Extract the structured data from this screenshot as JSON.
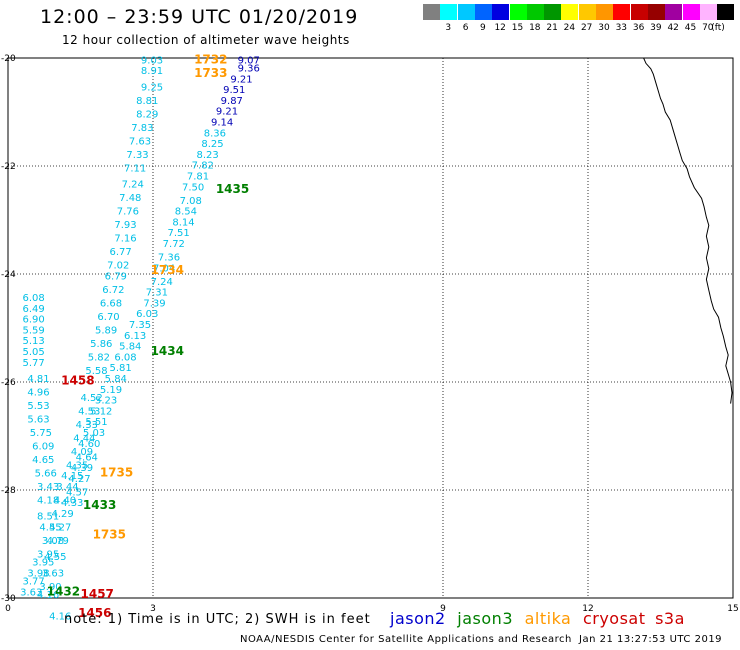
{
  "title": "12:00 – 23:59 UTC 01/20/2019",
  "subtitle": "12 hour collection of altimeter wave heights",
  "legend": {
    "unit": "(ft)",
    "bins": [
      {
        "label": "",
        "color": "#808080"
      },
      {
        "label": "3",
        "color": "#00ffff"
      },
      {
        "label": "6",
        "color": "#00c8ff"
      },
      {
        "label": "9",
        "color": "#0064ff"
      },
      {
        "label": "12",
        "color": "#0000e0"
      },
      {
        "label": "15",
        "color": "#00ff00"
      },
      {
        "label": "18",
        "color": "#00c800"
      },
      {
        "label": "21",
        "color": "#009600"
      },
      {
        "label": "24",
        "color": "#ffff00"
      },
      {
        "label": "27",
        "color": "#ffc800"
      },
      {
        "label": "30",
        "color": "#ff9600"
      },
      {
        "label": "33",
        "color": "#ff0000"
      },
      {
        "label": "36",
        "color": "#c80000"
      },
      {
        "label": "39",
        "color": "#960000"
      },
      {
        "label": "42",
        "color": "#a000a0"
      },
      {
        "label": "45",
        "color": "#ff00ff"
      },
      {
        "label": "70",
        "color": "#ffb4ff"
      },
      {
        "label": "",
        "color": "#000000"
      }
    ]
  },
  "axes": {
    "x_ticks": [
      "0",
      "3",
      "9",
      "12",
      "15"
    ],
    "y_ticks": [
      "-20",
      "-22",
      "-24",
      "-26",
      "-28",
      "-30"
    ]
  },
  "colors": {
    "jason2": "#0000cc",
    "jason3": "#007f00",
    "altika": "#ff9900",
    "cryosat": "#cc0000",
    "s3a": "#cc0000",
    "wave_cyan": "#00bfe6",
    "wave_blue": "#0000b4"
  },
  "observations": {
    "track_west": [
      {
        "lon": 0.3,
        "lat": -24.5,
        "v": "6.08"
      },
      {
        "lon": 0.3,
        "lat": -24.7,
        "v": "6.49"
      },
      {
        "lon": 0.3,
        "lat": -24.9,
        "v": "6.90"
      },
      {
        "lon": 0.3,
        "lat": -25.1,
        "v": "5.59"
      },
      {
        "lon": 0.3,
        "lat": -25.3,
        "v": "5.13"
      },
      {
        "lon": 0.3,
        "lat": -25.5,
        "v": "5.05"
      },
      {
        "lon": 0.3,
        "lat": -25.7,
        "v": "5.77"
      },
      {
        "lon": 0.4,
        "lat": -26.0,
        "v": "4.81"
      },
      {
        "lon": 0.4,
        "lat": -26.25,
        "v": "4.96"
      },
      {
        "lon": 0.4,
        "lat": -26.5,
        "v": "5.53"
      },
      {
        "lon": 0.4,
        "lat": -26.75,
        "v": "5.63"
      },
      {
        "lon": 0.45,
        "lat": -27.0,
        "v": "5.75"
      },
      {
        "lon": 0.5,
        "lat": -27.25,
        "v": "6.09"
      },
      {
        "lon": 0.5,
        "lat": -27.5,
        "v": "4.65"
      },
      {
        "lon": 0.55,
        "lat": -27.75,
        "v": "5.66"
      },
      {
        "lon": 0.6,
        "lat": -28.0,
        "v": "3.43"
      },
      {
        "lon": 0.6,
        "lat": -28.25,
        "v": "4.18"
      },
      {
        "lon": 0.6,
        "lat": -28.55,
        "v": "8.51"
      },
      {
        "lon": 0.65,
        "lat": -28.75,
        "v": "4.55"
      },
      {
        "lon": 0.7,
        "lat": -29.0,
        "v": "3.08"
      },
      {
        "lon": 0.6,
        "lat": -29.25,
        "v": "3.95"
      },
      {
        "lon": 0.5,
        "lat": -29.4,
        "v": "3.95"
      },
      {
        "lon": 0.4,
        "lat": -29.6,
        "v": "3.98"
      },
      {
        "lon": 0.3,
        "lat": -29.75,
        "v": "3.77"
      },
      {
        "lon": 0.25,
        "lat": -29.95,
        "v": "3.63"
      }
    ],
    "track_central": [
      {
        "lon": 2.75,
        "lat": -20.1,
        "v": "9.03"
      },
      {
        "lon": 2.75,
        "lat": -20.3,
        "v": "8.91"
      },
      {
        "lon": 2.75,
        "lat": -20.6,
        "v": "9.25"
      },
      {
        "lon": 2.65,
        "lat": -20.85,
        "v": "8.81"
      },
      {
        "lon": 2.65,
        "lat": -21.1,
        "v": "8.29"
      },
      {
        "lon": 2.55,
        "lat": -21.35,
        "v": "7.83"
      },
      {
        "lon": 2.5,
        "lat": -21.6,
        "v": "7.63"
      },
      {
        "lon": 2.45,
        "lat": -21.85,
        "v": "7.33"
      },
      {
        "lon": 2.4,
        "lat": -22.1,
        "v": "7.11"
      },
      {
        "lon": 2.35,
        "lat": -22.4,
        "v": "7.24"
      },
      {
        "lon": 2.3,
        "lat": -22.65,
        "v": "7.48"
      },
      {
        "lon": 2.25,
        "lat": -22.9,
        "v": "7.76"
      },
      {
        "lon": 2.2,
        "lat": -23.15,
        "v": "7.93"
      },
      {
        "lon": 2.2,
        "lat": -23.4,
        "v": "7.16"
      },
      {
        "lon": 2.1,
        "lat": -23.65,
        "v": "6.77"
      },
      {
        "lon": 2.05,
        "lat": -23.9,
        "v": "7.02"
      },
      {
        "lon": 2.0,
        "lat": -24.1,
        "v": "6.79"
      },
      {
        "lon": 1.95,
        "lat": -24.35,
        "v": "6.72"
      },
      {
        "lon": 1.9,
        "lat": -24.6,
        "v": "6.68"
      },
      {
        "lon": 1.85,
        "lat": -24.85,
        "v": "6.70"
      },
      {
        "lon": 1.8,
        "lat": -25.1,
        "v": "5.89"
      },
      {
        "lon": 1.7,
        "lat": -25.35,
        "v": "5.86"
      },
      {
        "lon": 1.65,
        "lat": -25.6,
        "v": "5.82"
      },
      {
        "lon": 1.6,
        "lat": -25.85,
        "v": "5.58"
      },
      {
        "lon": 1.5,
        "lat": -26.35,
        "v": "4.52"
      },
      {
        "lon": 1.45,
        "lat": -26.6,
        "v": "4.53"
      },
      {
        "lon": 1.4,
        "lat": -26.85,
        "v": "4.33"
      },
      {
        "lon": 1.35,
        "lat": -27.1,
        "v": "4.44"
      },
      {
        "lon": 1.3,
        "lat": -27.35,
        "v": "4.09"
      },
      {
        "lon": 1.2,
        "lat": -27.6,
        "v": "4.35"
      },
      {
        "lon": 1.1,
        "lat": -27.8,
        "v": "4.15"
      },
      {
        "lon": 1.0,
        "lat": -28.0,
        "v": "3.44"
      },
      {
        "lon": 0.95,
        "lat": -28.25,
        "v": "4.40"
      },
      {
        "lon": 0.9,
        "lat": -28.5,
        "v": "4.29"
      },
      {
        "lon": 0.85,
        "lat": -28.75,
        "v": "4.27"
      },
      {
        "lon": 0.8,
        "lat": -29.0,
        "v": "4.79"
      },
      {
        "lon": 0.75,
        "lat": -29.3,
        "v": "4.55"
      },
      {
        "lon": 0.7,
        "lat": -29.6,
        "v": "3.63"
      },
      {
        "lon": 0.65,
        "lat": -29.85,
        "v": "3.90"
      },
      {
        "lon": 0.6,
        "lat": -30.0,
        "v": "4.16"
      },
      {
        "lon": 0.85,
        "lat": -30.4,
        "v": "4.16"
      }
    ],
    "track_east_blue": [
      {
        "lon": 4.75,
        "lat": -20.1,
        "v": "9.07"
      },
      {
        "lon": 4.75,
        "lat": -20.25,
        "v": "9.36"
      },
      {
        "lon": 4.6,
        "lat": -20.45,
        "v": "9.21"
      },
      {
        "lon": 4.45,
        "lat": -20.65,
        "v": "9.51"
      },
      {
        "lon": 4.4,
        "lat": -20.85,
        "v": "9.87"
      },
      {
        "lon": 4.3,
        "lat": -21.05,
        "v": "9.21"
      },
      {
        "lon": 4.2,
        "lat": -21.25,
        "v": "9.14"
      }
    ],
    "track_east_cyan": [
      {
        "lon": 4.05,
        "lat": -21.45,
        "v": "8.36"
      },
      {
        "lon": 4.0,
        "lat": -21.65,
        "v": "8.25"
      },
      {
        "lon": 3.9,
        "lat": -21.85,
        "v": "8.23"
      },
      {
        "lon": 3.8,
        "lat": -22.05,
        "v": "7.82"
      },
      {
        "lon": 3.7,
        "lat": -22.25,
        "v": "7.81"
      },
      {
        "lon": 3.6,
        "lat": -22.45,
        "v": "7.50"
      },
      {
        "lon": 3.55,
        "lat": -22.7,
        "v": "7.08"
      },
      {
        "lon": 3.45,
        "lat": -22.9,
        "v": "8.54"
      },
      {
        "lon": 3.4,
        "lat": -23.1,
        "v": "8.14"
      },
      {
        "lon": 3.3,
        "lat": -23.3,
        "v": "7.51"
      },
      {
        "lon": 3.2,
        "lat": -23.5,
        "v": "7.72"
      },
      {
        "lon": 3.1,
        "lat": -23.75,
        "v": "7.36"
      },
      {
        "lon": 3.0,
        "lat": -23.95,
        "v": "7.04"
      },
      {
        "lon": 2.95,
        "lat": -24.2,
        "v": "7.24"
      },
      {
        "lon": 2.85,
        "lat": -24.4,
        "v": "7.31"
      },
      {
        "lon": 2.8,
        "lat": -24.6,
        "v": "7.39"
      },
      {
        "lon": 2.65,
        "lat": -24.8,
        "v": "6.03"
      },
      {
        "lon": 2.5,
        "lat": -25.0,
        "v": "7.35"
      },
      {
        "lon": 2.4,
        "lat": -25.2,
        "v": "6.13"
      },
      {
        "lon": 2.3,
        "lat": -25.4,
        "v": "5.84"
      },
      {
        "lon": 2.2,
        "lat": -25.6,
        "v": "6.08"
      },
      {
        "lon": 2.1,
        "lat": -25.8,
        "v": "5.81"
      },
      {
        "lon": 2.0,
        "lat": -26.0,
        "v": "5.84"
      },
      {
        "lon": 1.9,
        "lat": -26.2,
        "v": "5.19"
      },
      {
        "lon": 1.8,
        "lat": -26.4,
        "v": "5.23"
      },
      {
        "lon": 1.7,
        "lat": -26.6,
        "v": "5.12"
      },
      {
        "lon": 1.6,
        "lat": -26.8,
        "v": "5.51"
      },
      {
        "lon": 1.55,
        "lat": -27.0,
        "v": "5.03"
      },
      {
        "lon": 1.45,
        "lat": -27.2,
        "v": "4.60"
      },
      {
        "lon": 1.4,
        "lat": -27.45,
        "v": "4.64"
      },
      {
        "lon": 1.3,
        "lat": -27.65,
        "v": "4.39"
      },
      {
        "lon": 1.25,
        "lat": -27.85,
        "v": "4.27"
      },
      {
        "lon": 1.2,
        "lat": -28.1,
        "v": "4.57"
      },
      {
        "lon": 1.1,
        "lat": -28.3,
        "v": "4.33"
      }
    ],
    "pass_times": [
      {
        "lon": 3.85,
        "lat": -20.1,
        "t": "1732",
        "sat": "altika"
      },
      {
        "lon": 3.85,
        "lat": -20.35,
        "t": "1733",
        "sat": "altika"
      },
      {
        "lon": 4.3,
        "lat": -22.5,
        "t": "1435",
        "sat": "jason3"
      },
      {
        "lon": 2.95,
        "lat": -24.0,
        "t": "1734",
        "sat": "altika"
      },
      {
        "lon": 2.95,
        "lat": -25.5,
        "t": "1434",
        "sat": "jason3"
      },
      {
        "lon": 1.1,
        "lat": -26.05,
        "t": "1458",
        "sat": "cryosat"
      },
      {
        "lon": 1.9,
        "lat": -27.75,
        "t": "1735",
        "sat": "altika"
      },
      {
        "lon": 1.55,
        "lat": -28.35,
        "t": "1433",
        "sat": "jason3"
      },
      {
        "lon": 1.75,
        "lat": -28.9,
        "t": "1735",
        "sat": "altika"
      },
      {
        "lon": 0.8,
        "lat": -29.95,
        "t": "1432",
        "sat": "jason3"
      },
      {
        "lon": 1.5,
        "lat": -30.0,
        "t": "1457",
        "sat": "cryosat"
      },
      {
        "lon": 1.45,
        "lat": -30.35,
        "t": "1456",
        "sat": "cryosat"
      }
    ]
  },
  "coastline": [
    [
      13.15,
      -20.0
    ],
    [
      13.2,
      -20.1
    ],
    [
      13.3,
      -20.2
    ],
    [
      13.35,
      -20.3
    ],
    [
      13.4,
      -20.45
    ],
    [
      13.45,
      -20.6
    ],
    [
      13.5,
      -20.75
    ],
    [
      13.55,
      -20.85
    ],
    [
      13.6,
      -21.0
    ],
    [
      13.7,
      -21.15
    ],
    [
      13.75,
      -21.3
    ],
    [
      13.8,
      -21.45
    ],
    [
      13.85,
      -21.6
    ],
    [
      13.9,
      -21.75
    ],
    [
      13.95,
      -21.9
    ],
    [
      14.05,
      -22.05
    ],
    [
      14.1,
      -22.2
    ],
    [
      14.2,
      -22.4
    ],
    [
      14.35,
      -22.6
    ],
    [
      14.4,
      -22.75
    ],
    [
      14.45,
      -22.95
    ],
    [
      14.5,
      -23.1
    ],
    [
      14.45,
      -23.3
    ],
    [
      14.5,
      -23.5
    ],
    [
      14.45,
      -23.7
    ],
    [
      14.5,
      -23.9
    ],
    [
      14.45,
      -24.1
    ],
    [
      14.5,
      -24.3
    ],
    [
      14.55,
      -24.5
    ],
    [
      14.6,
      -24.65
    ],
    [
      14.7,
      -24.8
    ],
    [
      14.75,
      -25.0
    ],
    [
      14.8,
      -25.15
    ],
    [
      14.85,
      -25.35
    ],
    [
      14.9,
      -25.5
    ],
    [
      14.85,
      -25.7
    ],
    [
      14.9,
      -25.85
    ],
    [
      14.95,
      -26.0
    ],
    [
      14.98,
      -26.2
    ],
    [
      14.95,
      -26.4
    ]
  ],
  "note": "note:  1) Time is in UTC; 2) SWH is in feet",
  "satellites": {
    "jason2": "jason2",
    "jason3": "jason3",
    "altika": "altika",
    "cryosat": "cryosat",
    "s3a": "s3a"
  },
  "credit": "NOAA/NESDIS Center for Satellite Applications and Research",
  "stamp": "Jan 21 13:27:53 UTC 2019"
}
